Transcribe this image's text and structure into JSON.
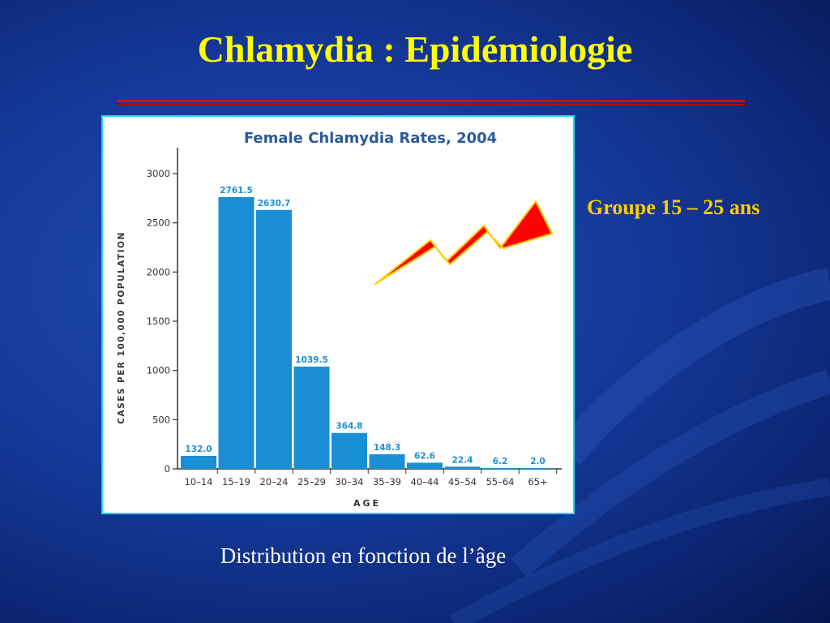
{
  "slide": {
    "title": "Chlamydia : Epidémiologie",
    "group_label": "Groupe 15 – 25 ans",
    "caption": "Distribution en fonction de l’âge"
  },
  "colors": {
    "title": "#ffff00",
    "group_label": "#ffcc00",
    "bar": "#1a8fd6",
    "data_label": "#1a8fd6",
    "chart_title": "#2a5a9a",
    "bolt": "#ff0000"
  },
  "chart_data": {
    "type": "bar",
    "title": "Female Chlamydia Rates, 2004",
    "xlabel": "AGE",
    "ylabel": "CASES PER 100,000 POPULATION",
    "categories": [
      "10–14",
      "15–19",
      "20–24",
      "25–29",
      "30–34",
      "35–39",
      "40–44",
      "45–54",
      "55–64",
      "65+"
    ],
    "values": [
      132.0,
      2761.5,
      2630.7,
      1039.5,
      364.8,
      148.3,
      62.6,
      22.4,
      6.2,
      2.0
    ],
    "value_labels": [
      "132.0",
      "2761.5",
      "2630.7",
      "1039.5",
      "364.8",
      "148.3",
      "62.6",
      "22.4",
      "6.2",
      "2.0"
    ],
    "yticks": [
      0,
      500,
      1000,
      1500,
      2000,
      2500,
      3000
    ],
    "ylim": [
      0,
      3000
    ],
    "grid": false,
    "legend": "none"
  }
}
